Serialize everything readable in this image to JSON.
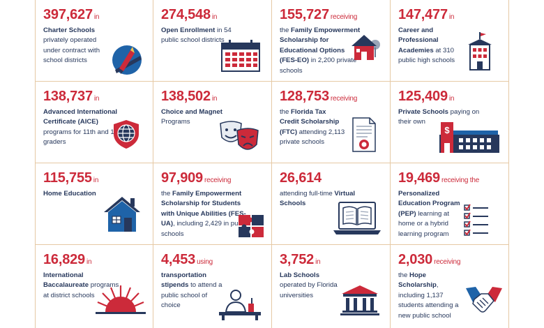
{
  "cells": [
    {
      "num": "397,627",
      "suffix": "in",
      "parts": [
        {
          "t": "Charter Schools",
          "b": true
        },
        {
          "t": " privately operated under contract with school districts",
          "b": false
        }
      ],
      "icon": "pencil-ruler-icon"
    },
    {
      "num": "274,548",
      "suffix": "in",
      "parts": [
        {
          "t": "Open Enrollment",
          "b": true
        },
        {
          "t": " in 54 public school districts",
          "b": false
        }
      ],
      "icon": "calendar-icon"
    },
    {
      "num": "155,727",
      "suffix": "receiving",
      "parts": [
        {
          "t": "the ",
          "b": false
        },
        {
          "t": "Family Empowerment Scholarship for Educational Options (FES-EO)",
          "b": true
        },
        {
          "t": " in 2,200 private schools",
          "b": false
        }
      ],
      "icon": "house-icon"
    },
    {
      "num": "147,477",
      "suffix": "in",
      "parts": [
        {
          "t": "Career and Professional Academies",
          "b": true
        },
        {
          "t": " at 310 public high schools",
          "b": false
        }
      ],
      "icon": "office-building-icon"
    },
    {
      "num": "138,737",
      "suffix": "in",
      "parts": [
        {
          "t": "Advanced International Certificate (AICE)",
          "b": true
        },
        {
          "t": " programs for 11th and 12th graders",
          "b": false
        }
      ],
      "icon": "globe-shield-icon"
    },
    {
      "num": "138,502",
      "suffix": "in",
      "parts": [
        {
          "t": "Choice and Magnet",
          "b": true
        },
        {
          "t": " Programs",
          "b": false
        }
      ],
      "icon": "theater-masks-icon"
    },
    {
      "num": "128,753",
      "suffix": "receiving",
      "parts": [
        {
          "t": "the ",
          "b": false
        },
        {
          "t": "Florida Tax Credit Scholarship (FTC)",
          "b": true
        },
        {
          "t": " attending 2,113 private schools",
          "b": false
        }
      ],
      "icon": "certificate-icon"
    },
    {
      "num": "125,409",
      "suffix": "in",
      "parts": [
        {
          "t": "Private Schools",
          "b": true
        },
        {
          "t": " paying on their own",
          "b": false
        }
      ],
      "icon": "private-school-building-icon"
    },
    {
      "num": "115,755",
      "suffix": "in",
      "parts": [
        {
          "t": "Home Education",
          "b": true
        }
      ],
      "icon": "home-icon"
    },
    {
      "num": "97,909",
      "suffix": "receiving",
      "parts": [
        {
          "t": "the ",
          "b": false
        },
        {
          "t": "Family Empowerment Scholarship for Students with Unique Abilities (FES-UA)",
          "b": true
        },
        {
          "t": ", including 2,429 in public schools",
          "b": false
        }
      ],
      "icon": "puzzle-icon"
    },
    {
      "num": "26,614",
      "suffix": "",
      "parts": [
        {
          "t": "attending full-time ",
          "b": false
        },
        {
          "t": "Virtual Schools",
          "b": true
        }
      ],
      "icon": "laptop-book-icon"
    },
    {
      "num": "19,469",
      "suffix": "receiving the",
      "parts": [
        {
          "t": "Personalized Education Program (PEP)",
          "b": true
        },
        {
          "t": " learning at home or a hybrid learning program",
          "b": false
        }
      ],
      "icon": "checklist-icon"
    },
    {
      "num": "16,829",
      "suffix": "in",
      "parts": [
        {
          "t": "International Baccalaureate",
          "b": true
        },
        {
          "t": " programs at district schools",
          "b": false
        }
      ],
      "icon": "sunrise-icon"
    },
    {
      "num": "4,453",
      "suffix": "using",
      "parts": [
        {
          "t": "transportation stipends",
          "b": true
        },
        {
          "t": " to attend a public school of choice",
          "b": false
        }
      ],
      "icon": "teacher-desk-icon"
    },
    {
      "num": "3,752",
      "suffix": "in",
      "parts": [
        {
          "t": "Lab Schools",
          "b": true
        },
        {
          "t": " operated by Florida universities",
          "b": false
        }
      ],
      "icon": "university-columns-icon"
    },
    {
      "num": "2,030",
      "suffix": "receiving",
      "parts": [
        {
          "t": "the ",
          "b": false
        },
        {
          "t": "Hope Scholarship",
          "b": true
        },
        {
          "t": ", including 1,137 students attending a new public school",
          "b": false
        }
      ],
      "icon": "handshake-icon"
    }
  ],
  "colors": {
    "red": "#cc2a3a",
    "navy": "#27385c",
    "blue": "#1f63a8",
    "border": "#e6c9a4"
  }
}
